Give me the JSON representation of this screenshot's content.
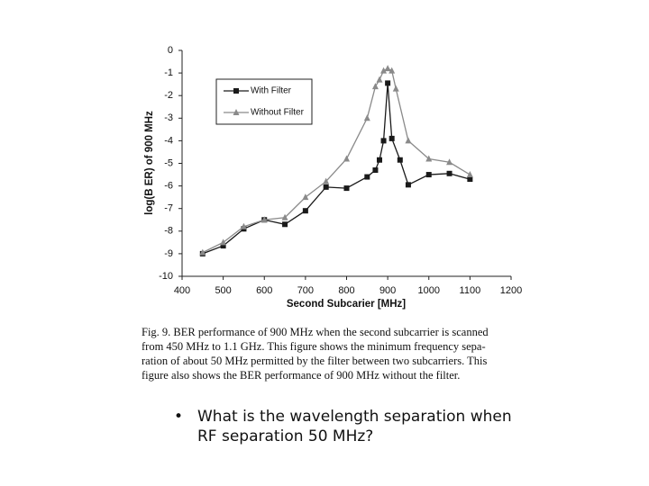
{
  "chart_data": {
    "type": "line",
    "x_label": "Second Subcarier [MHz]",
    "y_label": "log(B ER) of 900 MHz",
    "xlim": [
      400,
      1200
    ],
    "xticks": [
      400,
      500,
      600,
      700,
      800,
      900,
      1000,
      1100,
      1200
    ],
    "ylim": [
      -10,
      0
    ],
    "yticks": [
      0,
      -1,
      -2,
      -3,
      -4,
      -5,
      -6,
      -7,
      -8,
      -9,
      -10
    ],
    "legend": "upper-left",
    "series": [
      {
        "name": "With Filter",
        "color": "#1a1a1a",
        "marker": "square",
        "x": [
          450,
          500,
          550,
          600,
          650,
          700,
          750,
          800,
          850,
          870,
          880,
          890,
          900,
          910,
          930,
          950,
          1000,
          1050,
          1100
        ],
        "values": [
          -9.0,
          -8.65,
          -7.9,
          -7.5,
          -7.7,
          -7.1,
          -6.05,
          -6.1,
          -5.6,
          -5.3,
          -4.85,
          -4.0,
          -1.45,
          -3.9,
          -4.85,
          -5.95,
          -5.5,
          -5.45,
          -5.7
        ]
      },
      {
        "name": "Without Filter",
        "color": "#8a8a8a",
        "marker": "triangle",
        "x": [
          450,
          500,
          550,
          600,
          650,
          700,
          750,
          800,
          850,
          870,
          880,
          890,
          900,
          910,
          920,
          950,
          1000,
          1050,
          1100
        ],
        "values": [
          -8.95,
          -8.5,
          -7.8,
          -7.5,
          -7.4,
          -6.5,
          -5.8,
          -4.8,
          -3.0,
          -1.6,
          -1.3,
          -0.9,
          -0.8,
          -0.9,
          -1.7,
          -4.0,
          -4.8,
          -4.95,
          -5.5
        ]
      }
    ]
  },
  "caption": [
    "Fig. 9.   BER performance of 900 MHz when the second subcarrier is scanned",
    "from 450 MHz to 1.1 GHz. This figure shows the minimum frequency sepa-",
    "ration of about 50 MHz permitted by the filter between two subcarriers. This",
    "figure also shows the BER performance of 900 MHz without the filter."
  ],
  "bullet": "What is the wavelength separation when RF separation 50 MHz?"
}
